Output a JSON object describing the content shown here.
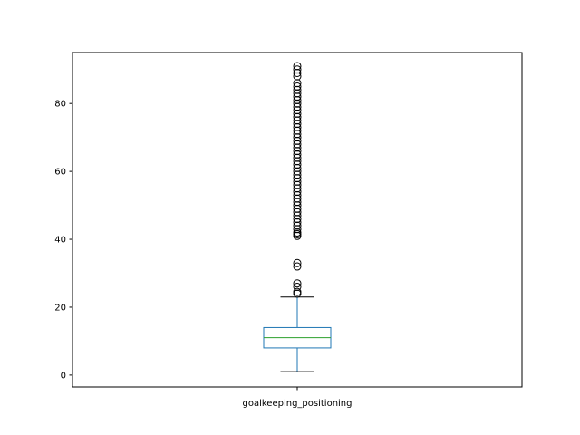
{
  "chart_data": {
    "type": "box",
    "title": "",
    "xlabel": "",
    "ylabel": "",
    "categories": [
      "goalkeeping_positioning"
    ],
    "ylim": [
      -3.5,
      95
    ],
    "yticks": [
      0,
      20,
      40,
      60,
      80
    ],
    "grid": false,
    "colors": {
      "box": "#1f77b4",
      "median": "#2ca02c",
      "whisker": "#1f77b4",
      "cap": "#000000",
      "flier": "#000000"
    },
    "boxes": [
      {
        "name": "goalkeeping_positioning",
        "whisker_low": 1,
        "q1": 8,
        "median": 11,
        "q3": 14,
        "whisker_high": 23,
        "fliers": [
          24,
          24.5,
          26,
          27,
          32,
          33,
          41,
          41.5,
          42,
          43,
          44,
          45,
          46,
          47,
          48,
          49,
          50,
          51,
          52,
          53,
          54,
          55,
          56,
          57,
          58,
          59,
          60,
          61,
          62,
          63,
          64,
          65,
          66,
          67,
          68,
          69,
          70,
          71,
          72,
          73,
          74,
          75,
          76,
          77,
          78,
          79,
          80,
          81,
          82,
          83,
          84,
          85,
          86,
          88,
          89,
          90,
          91
        ]
      }
    ]
  }
}
